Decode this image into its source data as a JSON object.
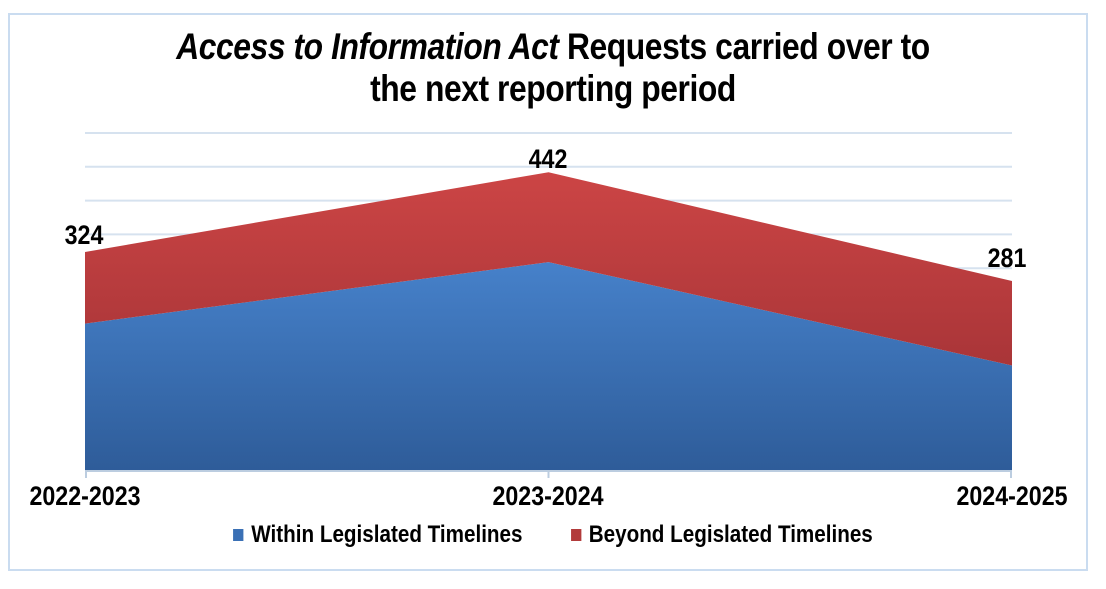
{
  "title": {
    "line1_italic": "Access to Information Act",
    "line1_rest": " Requests carried over to",
    "line2": "the next reporting period"
  },
  "chart_data": {
    "type": "area",
    "stacked": true,
    "title": "Access to Information Act Requests carried over to the next reporting period",
    "categories": [
      "2022-2023",
      "2023-2024",
      "2024-2025"
    ],
    "series": [
      {
        "name": "Within Legislated Timelines",
        "values": [
          218,
          309,
          156
        ],
        "color": "#3a70b5",
        "fill_top": "#4681ca",
        "fill_bottom": "#2e5c99"
      },
      {
        "name": "Beyond Legislated Timelines",
        "values": [
          106,
          133,
          125
        ],
        "color": "#b23b3b",
        "fill_top": "#cc4545",
        "fill_bottom": "#a93538"
      }
    ],
    "total_labels": [
      "324",
      "442",
      "281"
    ],
    "totals": [
      324,
      442,
      281
    ],
    "series_split_estimated_from_pixels": true,
    "xlabel": "",
    "ylabel": "",
    "ylim": [
      0,
      500
    ],
    "gridline_interval": 50,
    "grid": true,
    "y_axis_labels_shown": false,
    "legend_position": "bottom",
    "colors": {
      "gridline": "#d6e2ef",
      "axis_line": "#bccde0",
      "frame_border": "#cadcf0",
      "label_text": "#000000"
    }
  },
  "legend": {
    "items": [
      {
        "label": "Within Legislated Timelines"
      },
      {
        "label": "Beyond Legislated Timelines"
      }
    ]
  }
}
